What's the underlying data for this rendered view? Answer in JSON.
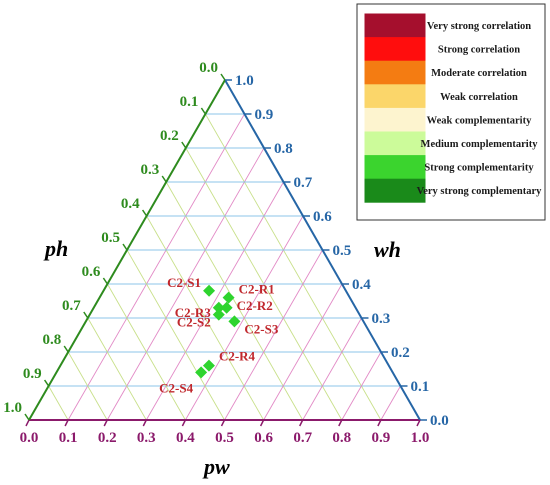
{
  "chart_data": {
    "type": "scatter",
    "subtype": "ternary",
    "axes": {
      "pw": {
        "label": "pw",
        "color": "#8b1a6b",
        "ticks": [
          "0.0",
          "0.1",
          "0.2",
          "0.3",
          "0.4",
          "0.5",
          "0.6",
          "0.7",
          "0.8",
          "0.9",
          "1.0"
        ]
      },
      "wh": {
        "label": "wh",
        "color": "#2666a6",
        "ticks": [
          "0.0",
          "0.1",
          "0.2",
          "0.3",
          "0.4",
          "0.5",
          "0.6",
          "0.7",
          "0.8",
          "0.9",
          "1.0"
        ]
      },
      "ph": {
        "label": "ph",
        "color": "#2e8b1e",
        "ticks": [
          "0.0",
          "0.1",
          "0.2",
          "0.3",
          "0.4",
          "0.5",
          "0.6",
          "0.7",
          "0.8",
          "0.9",
          "1.0"
        ]
      }
    },
    "points": [
      {
        "name": "C2-S1",
        "pw": 0.27,
        "wh": 0.38,
        "ph": 0.35
      },
      {
        "name": "C2-R1",
        "pw": 0.33,
        "wh": 0.36,
        "ph": 0.31
      },
      {
        "name": "C2-R3",
        "pw": 0.32,
        "wh": 0.33,
        "ph": 0.35
      },
      {
        "name": "C2-R2",
        "pw": 0.34,
        "wh": 0.33,
        "ph": 0.33
      },
      {
        "name": "C2-S2",
        "pw": 0.33,
        "wh": 0.31,
        "ph": 0.36
      },
      {
        "name": "C2-S3",
        "pw": 0.38,
        "wh": 0.29,
        "ph": 0.33
      },
      {
        "name": "C2-R4",
        "pw": 0.38,
        "wh": 0.16,
        "ph": 0.46
      },
      {
        "name": "C2-S4",
        "pw": 0.37,
        "wh": 0.14,
        "ph": 0.49
      }
    ],
    "point_color": "#2ed42e",
    "label_color": "#c0282d",
    "legend": {
      "position": "top-right",
      "items": [
        {
          "label": "Very strong correlation",
          "color": "#a50f2d"
        },
        {
          "label": "Strong correlation",
          "color": "#ff0d0d"
        },
        {
          "label": "Moderate correlation",
          "color": "#f47c12"
        },
        {
          "label": "Weak correlation",
          "color": "#fbd66a"
        },
        {
          "label": "Weak complementarity",
          "color": "#fdf4cf"
        },
        {
          "label": "Medium complementarity",
          "color": "#ccfb9a"
        },
        {
          "label": "Strong complementarity",
          "color": "#3bd42e"
        },
        {
          "label": "Very strong complementary",
          "color": "#1a8a1a"
        }
      ]
    },
    "grid": true,
    "grid_colors": {
      "pw": "#e28ac6",
      "wh": "#8cc6e8",
      "ph": "#c8e08a"
    }
  }
}
